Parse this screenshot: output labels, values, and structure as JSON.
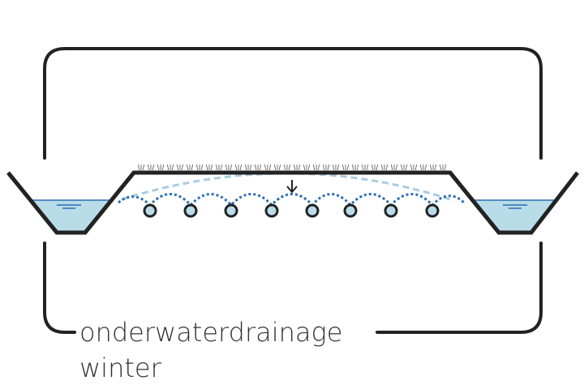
{
  "caption": {
    "title": "onderwaterdrainage",
    "subtitle": "winter"
  }
}
